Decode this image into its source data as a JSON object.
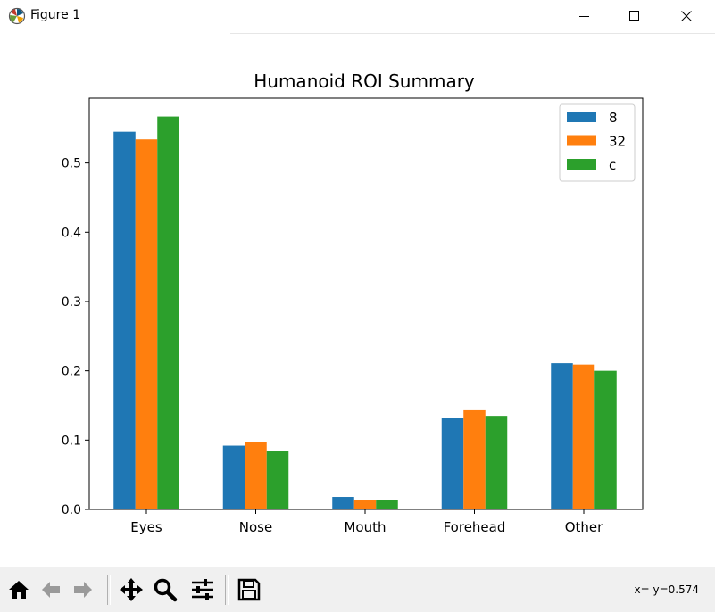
{
  "window": {
    "title": "Figure 1",
    "icons": {
      "app": "matplotlib-icon",
      "minimize": "minimize-icon",
      "maximize": "maximize-icon",
      "close": "close-icon"
    }
  },
  "toolbar": {
    "buttons": [
      {
        "name": "home-button",
        "icon": "home-icon"
      },
      {
        "name": "back-button",
        "icon": "arrow-left-icon"
      },
      {
        "name": "forward-button",
        "icon": "arrow-right-icon"
      },
      {
        "name": "pan-button",
        "icon": "move-icon"
      },
      {
        "name": "zoom-button",
        "icon": "zoom-icon"
      },
      {
        "name": "configure-subplots-button",
        "icon": "sliders-icon"
      },
      {
        "name": "save-button",
        "icon": "save-icon"
      }
    ],
    "status": "x= y=0.574"
  },
  "chart_data": {
    "type": "bar",
    "title": "Humanoid ROI Summary",
    "xlabel": "",
    "ylabel": "",
    "categories": [
      "Eyes",
      "Nose",
      "Mouth",
      "Forehead",
      "Other"
    ],
    "series": [
      {
        "name": "8",
        "color": "#1f77b4",
        "values": [
          0.545,
          0.092,
          0.018,
          0.132,
          0.211
        ]
      },
      {
        "name": "32",
        "color": "#ff7f0e",
        "values": [
          0.534,
          0.097,
          0.014,
          0.143,
          0.209
        ]
      },
      {
        "name": "c",
        "color": "#2ca02c",
        "values": [
          0.567,
          0.084,
          0.013,
          0.135,
          0.2
        ]
      }
    ],
    "ylim": [
      0,
      0.5935
    ],
    "yticks": [
      "0.0",
      "0.1",
      "0.2",
      "0.3",
      "0.4",
      "0.5"
    ],
    "ytick_values": [
      0.0,
      0.1,
      0.2,
      0.3,
      0.4,
      0.5
    ],
    "grid": false,
    "legend_position": "top-right"
  }
}
